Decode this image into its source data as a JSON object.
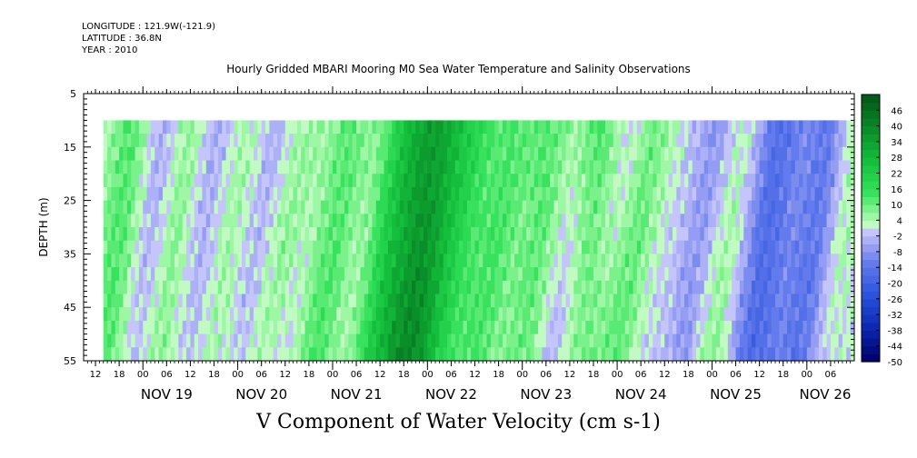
{
  "header": {
    "longitude": "LONGITUDE : 121.9W(-121.9)",
    "latitude": "LATITUDE : 36.8N",
    "year": "YEAR : 2010"
  },
  "chart_data": {
    "type": "heatmap",
    "title": "Hourly Gridded MBARI Mooring M0 Sea Water Temperature and Salinity Observations",
    "xlabel": "V Component of Water Velocity (cm s-1)",
    "ylabel": "DEPTH (m)",
    "y_ticks": [
      "5",
      "15",
      "25",
      "35",
      "45",
      "55"
    ],
    "y_range": [
      5,
      55
    ],
    "data_depth_range": [
      10,
      55
    ],
    "x_start": "2010-11-18T09:00",
    "x_end": "2010-11-26T12:00",
    "x_data_start": "2010-11-18T14:00",
    "x_hour_labels": [
      "12",
      "18",
      "00",
      "06",
      "12",
      "18",
      "00",
      "06",
      "12",
      "18",
      "00",
      "06",
      "12",
      "18",
      "00",
      "06",
      "12",
      "18",
      "00",
      "06",
      "12",
      "18",
      "00",
      "06",
      "12",
      "18",
      "00",
      "06",
      "12",
      "18",
      "00",
      "06"
    ],
    "x_day_labels": [
      "NOV 19",
      "NOV 20",
      "NOV 21",
      "NOV 22",
      "NOV 23",
      "NOV 24",
      "NOV 25",
      "NOV 26"
    ],
    "colorbar_labels": [
      "46",
      "40",
      "34",
      "28",
      "22",
      "16",
      "10",
      "4",
      "-2",
      "-8",
      "-14",
      "-20",
      "-26",
      "-32",
      "-38",
      "-44",
      "-50"
    ],
    "colorbar_range": [
      -50,
      52
    ],
    "colorbar_step": 3,
    "bands": [
      {
        "start": "2010-11-18T14:00",
        "center": "2010-11-18T18:00",
        "value": 12,
        "width_h": 4,
        "tilt_h": 8
      },
      {
        "start": "2010-11-19T00:00",
        "center": "2010-11-19T02:00",
        "value": -8,
        "width_h": 4,
        "tilt_h": 6
      },
      {
        "start": "2010-11-19T06:00",
        "center": "2010-11-19T08:00",
        "value": 10,
        "width_h": 4,
        "tilt_h": 10
      },
      {
        "start": "2010-11-19T12:00",
        "center": "2010-11-19T15:00",
        "value": -9,
        "width_h": 4,
        "tilt_h": 6
      },
      {
        "start": "2010-11-19T18:00",
        "center": "2010-11-19T22:00",
        "value": 8,
        "width_h": 5,
        "tilt_h": 14
      },
      {
        "start": "2010-11-20T02:00",
        "center": "2010-11-20T05:00",
        "value": -10,
        "width_h": 4,
        "tilt_h": 8
      },
      {
        "start": "2010-11-20T08:00",
        "center": "2010-11-20T12:00",
        "value": 10,
        "width_h": 5,
        "tilt_h": 16
      },
      {
        "start": "2010-11-20T14:00",
        "center": "2010-11-20T17:00",
        "value": -9,
        "width_h": 4,
        "tilt_h": 10
      },
      {
        "start": "2010-11-20T20:00",
        "center": "2010-11-21T01:00",
        "value": 14,
        "width_h": 6,
        "tilt_h": 12
      },
      {
        "start": "2010-11-21T04:00",
        "center": "2010-11-21T07:00",
        "value": -14,
        "width_h": 4,
        "tilt_h": 8
      },
      {
        "start": "2010-11-21T12:00",
        "center": "2010-11-21T16:00",
        "value": 24,
        "width_h": 7,
        "tilt_h": 10
      },
      {
        "start": "2010-11-21T20:00",
        "center": "2010-11-21T23:00",
        "value": 12,
        "width_h": 4,
        "tilt_h": 8
      },
      {
        "start": "2010-11-22T02:00",
        "center": "2010-11-22T06:00",
        "value": 18,
        "width_h": 6,
        "tilt_h": 14
      },
      {
        "start": "2010-11-22T10:00",
        "center": "2010-11-22T13:00",
        "value": -8,
        "width_h": 4,
        "tilt_h": 10
      },
      {
        "start": "2010-11-22T14:00",
        "center": "2010-11-22T17:00",
        "value": 14,
        "width_h": 5,
        "tilt_h": 14
      },
      {
        "start": "2010-11-22T20:00",
        "center": "2010-11-22T23:00",
        "value": -10,
        "width_h": 4,
        "tilt_h": 8
      },
      {
        "start": "2010-11-23T00:00",
        "center": "2010-11-23T04:00",
        "value": 16,
        "width_h": 6,
        "tilt_h": 12
      },
      {
        "start": "2010-11-23T08:00",
        "center": "2010-11-23T11:00",
        "value": -16,
        "width_h": 4,
        "tilt_h": 6
      },
      {
        "start": "2010-11-23T13:00",
        "center": "2010-11-23T16:00",
        "value": 14,
        "width_h": 5,
        "tilt_h": 6
      },
      {
        "start": "2010-11-23T20:00",
        "center": "2010-11-23T23:00",
        "value": -8,
        "width_h": 4,
        "tilt_h": 10
      },
      {
        "start": "2010-11-24T01:00",
        "center": "2010-11-24T05:00",
        "value": 14,
        "width_h": 5,
        "tilt_h": 12
      },
      {
        "start": "2010-11-24T08:00",
        "center": "2010-11-24T11:00",
        "value": -10,
        "width_h": 4,
        "tilt_h": 10
      },
      {
        "start": "2010-11-24T12:00",
        "center": "2010-11-24T14:00",
        "value": 6,
        "width_h": 4,
        "tilt_h": 12
      },
      {
        "start": "2010-11-24T18:00",
        "center": "2010-11-24T21:00",
        "value": -12,
        "width_h": 4,
        "tilt_h": 8
      },
      {
        "start": "2010-11-25T02:00",
        "center": "2010-11-25T05:00",
        "value": 14,
        "width_h": 5,
        "tilt_h": 10
      },
      {
        "start": "2010-11-25T08:00",
        "center": "2010-11-25T13:00",
        "value": -22,
        "width_h": 6,
        "tilt_h": 6
      },
      {
        "start": "2010-11-25T16:00",
        "center": "2010-11-25T19:00",
        "value": 4,
        "width_h": 4,
        "tilt_h": 12
      },
      {
        "start": "2010-11-25T22:00",
        "center": "2010-11-26T02:00",
        "value": -14,
        "width_h": 4,
        "tilt_h": 6
      },
      {
        "start": "2010-11-26T06:00",
        "center": "2010-11-26T08:00",
        "value": 6,
        "width_h": 3,
        "tilt_h": 10
      }
    ]
  }
}
